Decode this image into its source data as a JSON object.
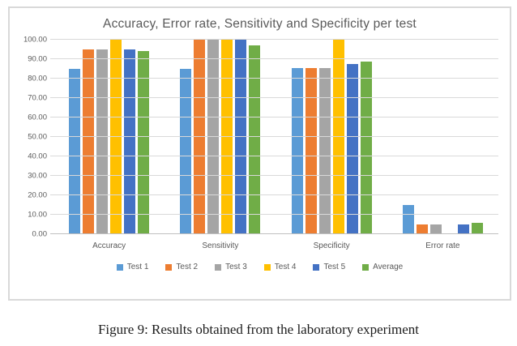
{
  "figure": {
    "caption": "Figure 9: Results obtained from the laboratory experiment"
  },
  "chart_data": {
    "type": "bar",
    "title": "Accuracy, Error rate, Sensitivity and Specificity per test",
    "categories": [
      "Accuracy",
      "Sensitivity",
      "Specificity",
      "Error rate"
    ],
    "series": [
      {
        "name": "Test 1",
        "color": "#5b9bd5",
        "values": [
          85,
          85,
          85.5,
          15
        ]
      },
      {
        "name": "Test 2",
        "color": "#ed7d31",
        "values": [
          95,
          100,
          85.5,
          5
        ]
      },
      {
        "name": "Test 3",
        "color": "#a5a5a5",
        "values": [
          95,
          100,
          85.5,
          5
        ]
      },
      {
        "name": "Test 4",
        "color": "#ffc000",
        "values": [
          100,
          100,
          100,
          0
        ]
      },
      {
        "name": "Test 5",
        "color": "#4472c4",
        "values": [
          95,
          100,
          87.5,
          5
        ]
      },
      {
        "name": "Average",
        "color": "#70ad47",
        "values": [
          94,
          97,
          88.8,
          6
        ]
      }
    ],
    "ylim": [
      0,
      100
    ],
    "ytick_step": 10,
    "ytick_labels": [
      "0.00",
      "10.00",
      "20.00",
      "30.00",
      "40.00",
      "50.00",
      "60.00",
      "70.00",
      "80.00",
      "90.00",
      "100.00"
    ],
    "grid": true,
    "legend_position": "bottom",
    "colors": {
      "title_text": "#595959",
      "axis_text": "#595959",
      "gridline": "#d9d9d9",
      "axis_line": "#bfbfbf",
      "frame_border": "#d9d9d9"
    }
  }
}
